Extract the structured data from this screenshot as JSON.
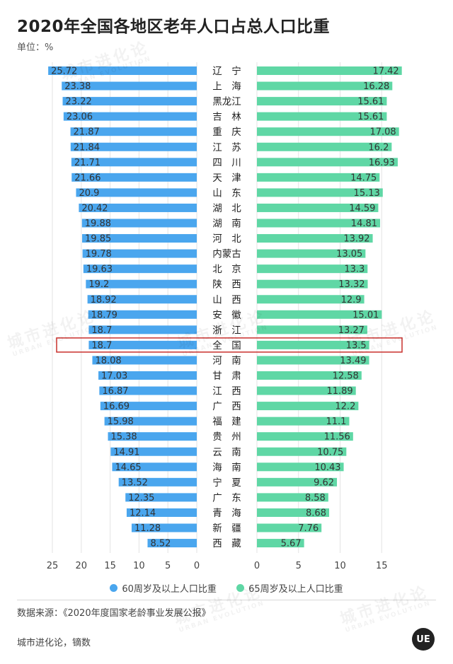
{
  "title": "2020年全国各地区老年人口占总人口比重",
  "unit_label": "单位：%",
  "source": "数据来源：《2020年度国家老龄事业发展公报》",
  "credit": "城市进化论，镝数",
  "logo_text": "UE",
  "watermark": {
    "cn": "城市进化论",
    "en": "URBAN EVOLUTION"
  },
  "colors": {
    "left": "#4aa6ee",
    "right": "#5fd7a5",
    "highlight": "#c9302c"
  },
  "chart_data": {
    "type": "bar",
    "orientation": "horizontal-butterfly",
    "categories": [
      "辽　宁",
      "上　海",
      "黑龙江",
      "吉　林",
      "重　庆",
      "江　苏",
      "四　川",
      "天　津",
      "山　东",
      "湖　北",
      "湖　南",
      "河　北",
      "内蒙古",
      "北　京",
      "陕　西",
      "山　西",
      "安　徽",
      "浙　江",
      "全　国",
      "河　南",
      "甘　肃",
      "江　西",
      "广　西",
      "福　建",
      "贵　州",
      "云　南",
      "海　南",
      "宁　夏",
      "广　东",
      "青　海",
      "新　疆",
      "西　藏"
    ],
    "series": [
      {
        "name": "60周岁及以上人口比重",
        "side": "left",
        "values": [
          25.72,
          23.38,
          23.22,
          23.06,
          21.87,
          21.84,
          21.71,
          21.66,
          20.9,
          20.42,
          19.88,
          19.85,
          19.78,
          19.63,
          19.2,
          18.92,
          18.79,
          18.7,
          18.7,
          18.08,
          17.03,
          16.87,
          16.69,
          15.98,
          15.38,
          14.91,
          14.65,
          13.52,
          12.35,
          12.14,
          11.28,
          8.52
        ]
      },
      {
        "name": "65周岁及以上人口比重",
        "side": "right",
        "values": [
          17.42,
          16.28,
          15.61,
          15.61,
          17.08,
          16.2,
          16.93,
          14.75,
          15.13,
          14.59,
          14.81,
          13.92,
          13.05,
          13.3,
          13.32,
          12.9,
          15.01,
          13.27,
          13.5,
          13.49,
          12.58,
          11.89,
          12.2,
          11.1,
          11.56,
          10.75,
          10.43,
          9.62,
          8.58,
          8.68,
          7.76,
          5.67
        ]
      }
    ],
    "left_axis": {
      "ticks": [
        "25",
        "20",
        "15",
        "10",
        "5",
        "0"
      ],
      "range": [
        25,
        0
      ]
    },
    "right_axis": {
      "ticks": [
        "0",
        "5",
        "10",
        "15"
      ],
      "range": [
        0,
        17.42
      ]
    },
    "highlight_category": "全　国",
    "grid": true,
    "legend_position": "bottom"
  }
}
